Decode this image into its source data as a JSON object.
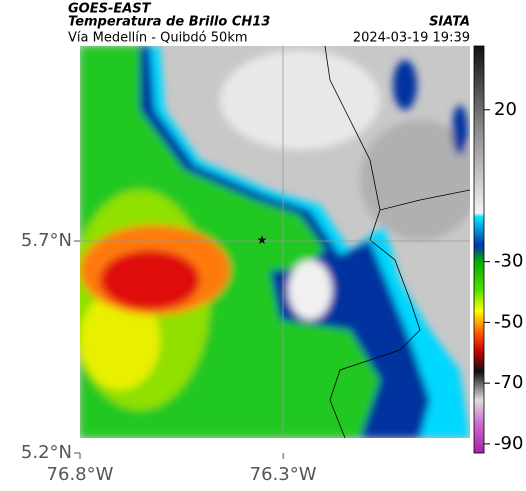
{
  "header": {
    "title": "GOES-EAST",
    "subtitle": "Temperatura de Brillo CH13",
    "region": "Vía Medellín - Quibdó 50km",
    "source": "SIATA",
    "datetime": "2024-03-19 19:39"
  },
  "map": {
    "lat_ticks": [
      {
        "value": 5.7,
        "label": "5.7°N"
      },
      {
        "value": 5.2,
        "label": "5.2°N"
      }
    ],
    "lon_ticks": [
      {
        "value": -76.8,
        "label": "76.8°W"
      },
      {
        "value": -76.3,
        "label": "76.3°W"
      }
    ],
    "lat_range": [
      5.2,
      6.16
    ],
    "lon_range": [
      -76.8,
      -75.84
    ]
  },
  "colorbar": {
    "ticks": [
      20,
      -30,
      -50,
      -70,
      -90
    ],
    "range": [
      41,
      -93
    ]
  }
}
